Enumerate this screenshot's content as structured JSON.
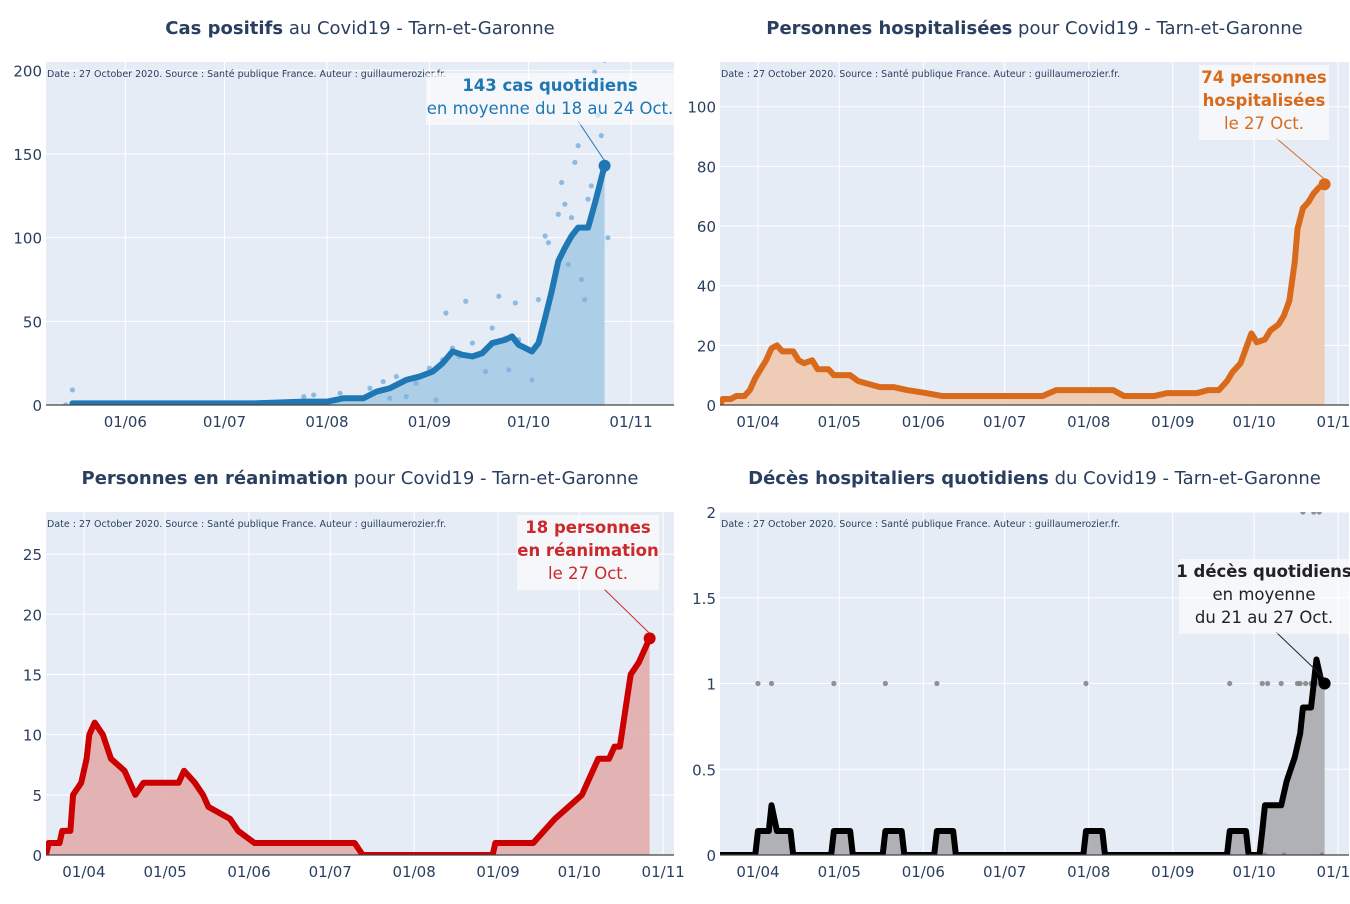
{
  "source_note": "Date : 27 October 2020. Source : Santé publique France. Auteur : guillaumerozier.fr.",
  "chart_data": [
    {
      "id": "cases",
      "type": "area",
      "title_bold": "Cas positifs",
      "title_rest": " au Covid19 - Tarn-et-Garonne",
      "color": "#1f77b4",
      "fill": "#a6cbe6",
      "dot_color": "#7fb2dc",
      "ylim": [
        0,
        205
      ],
      "y_ticks": [
        0,
        50,
        100,
        150,
        200
      ],
      "y_tick_labels": [
        "0",
        "50",
        "100",
        "150",
        "200"
      ],
      "x_range": [
        "2020-05-08",
        "2020-11-14"
      ],
      "x_ticks": [
        "2020-06-01",
        "2020-07-01",
        "2020-08-01",
        "2020-09-01",
        "2020-10-01",
        "2020-11-01"
      ],
      "x_tick_labels": [
        "01/06",
        "01/07",
        "01/08",
        "01/09",
        "01/10",
        "01/11"
      ],
      "line": [
        [
          "2020-05-16",
          1
        ],
        [
          "2020-06-01",
          1
        ],
        [
          "2020-06-20",
          1
        ],
        [
          "2020-07-10",
          1
        ],
        [
          "2020-07-25",
          2
        ],
        [
          "2020-08-01",
          2
        ],
        [
          "2020-08-06",
          4
        ],
        [
          "2020-08-12",
          4
        ],
        [
          "2020-08-16",
          8
        ],
        [
          "2020-08-20",
          10
        ],
        [
          "2020-08-25",
          15
        ],
        [
          "2020-08-29",
          17
        ],
        [
          "2020-09-02",
          20
        ],
        [
          "2020-09-05",
          25
        ],
        [
          "2020-09-08",
          32
        ],
        [
          "2020-09-11",
          30
        ],
        [
          "2020-09-14",
          29
        ],
        [
          "2020-09-17",
          31
        ],
        [
          "2020-09-20",
          37
        ],
        [
          "2020-09-24",
          39
        ],
        [
          "2020-09-26",
          41
        ],
        [
          "2020-09-28",
          36
        ],
        [
          "2020-09-30",
          34
        ],
        [
          "2020-10-02",
          32
        ],
        [
          "2020-10-04",
          37
        ],
        [
          "2020-10-06",
          52
        ],
        [
          "2020-10-08",
          68
        ],
        [
          "2020-10-10",
          86
        ],
        [
          "2020-10-12",
          94
        ],
        [
          "2020-10-14",
          101
        ],
        [
          "2020-10-16",
          106
        ],
        [
          "2020-10-19",
          106
        ],
        [
          "2020-10-21",
          120
        ],
        [
          "2020-10-24",
          143
        ]
      ],
      "dots": [
        [
          "2020-05-16",
          9
        ],
        [
          "2020-05-14",
          0
        ],
        [
          "2020-06-20",
          1
        ],
        [
          "2020-07-25",
          5
        ],
        [
          "2020-07-28",
          6
        ],
        [
          "2020-08-05",
          7
        ],
        [
          "2020-08-14",
          10
        ],
        [
          "2020-08-18",
          14
        ],
        [
          "2020-08-20",
          4
        ],
        [
          "2020-08-22",
          17
        ],
        [
          "2020-08-25",
          5
        ],
        [
          "2020-08-28",
          13
        ],
        [
          "2020-09-01",
          22
        ],
        [
          "2020-09-03",
          3
        ],
        [
          "2020-09-05",
          27
        ],
        [
          "2020-09-06",
          55
        ],
        [
          "2020-09-08",
          34
        ],
        [
          "2020-09-10",
          29
        ],
        [
          "2020-09-12",
          62
        ],
        [
          "2020-09-14",
          37
        ],
        [
          "2020-09-16",
          30
        ],
        [
          "2020-09-18",
          20
        ],
        [
          "2020-09-20",
          46
        ],
        [
          "2020-09-22",
          65
        ],
        [
          "2020-09-24",
          40
        ],
        [
          "2020-09-25",
          21
        ],
        [
          "2020-09-27",
          61
        ],
        [
          "2020-09-28",
          39
        ],
        [
          "2020-10-02",
          15
        ],
        [
          "2020-10-04",
          63
        ],
        [
          "2020-10-06",
          101
        ],
        [
          "2020-10-07",
          97
        ],
        [
          "2020-10-08",
          67
        ],
        [
          "2020-10-10",
          114
        ],
        [
          "2020-10-11",
          133
        ],
        [
          "2020-10-12",
          120
        ],
        [
          "2020-10-13",
          84
        ],
        [
          "2020-10-14",
          112
        ],
        [
          "2020-10-15",
          145
        ],
        [
          "2020-10-16",
          155
        ],
        [
          "2020-10-17",
          75
        ],
        [
          "2020-10-18",
          63
        ],
        [
          "2020-10-19",
          123
        ],
        [
          "2020-10-20",
          131
        ],
        [
          "2020-10-21",
          199
        ],
        [
          "2020-10-22",
          173
        ],
        [
          "2020-10-23",
          161
        ],
        [
          "2020-10-24",
          206
        ],
        [
          "2020-10-25",
          100
        ]
      ],
      "marker": [
        "2020-10-24",
        143
      ],
      "annotation": [
        "143 cas quotidiens",
        "en moyenne du 18 au 24 Oct."
      ]
    },
    {
      "id": "hosp",
      "type": "area",
      "title_bold": "Personnes hospitalisées",
      "title_rest": " pour Covid19 - Tarn-et-Garonne",
      "color": "#d96a1c",
      "fill": "#f0c9ae",
      "ylim": [
        0,
        115
      ],
      "y_ticks": [
        0,
        20,
        40,
        60,
        80,
        100
      ],
      "y_tick_labels": [
        "0",
        "20",
        "40",
        "60",
        "80",
        "100"
      ],
      "x_range": [
        "2020-03-18",
        "2020-11-05"
      ],
      "x_ticks": [
        "2020-04-01",
        "2020-05-01",
        "2020-06-01",
        "2020-07-01",
        "2020-08-01",
        "2020-09-01",
        "2020-10-01",
        "2020-11-01"
      ],
      "x_tick_labels": [
        "01/04",
        "01/05",
        "01/06",
        "01/07",
        "01/08",
        "01/09",
        "01/10",
        "01/11"
      ],
      "line": [
        [
          "2020-03-18",
          0
        ],
        [
          "2020-03-19",
          2
        ],
        [
          "2020-03-22",
          2
        ],
        [
          "2020-03-24",
          3
        ],
        [
          "2020-03-27",
          3
        ],
        [
          "2020-03-29",
          5
        ],
        [
          "2020-03-31",
          9
        ],
        [
          "2020-04-02",
          12
        ],
        [
          "2020-04-04",
          15
        ],
        [
          "2020-04-06",
          19
        ],
        [
          "2020-04-08",
          20
        ],
        [
          "2020-04-10",
          18
        ],
        [
          "2020-04-14",
          18
        ],
        [
          "2020-04-16",
          15
        ],
        [
          "2020-04-18",
          14
        ],
        [
          "2020-04-21",
          15
        ],
        [
          "2020-04-23",
          12
        ],
        [
          "2020-04-27",
          12
        ],
        [
          "2020-04-29",
          10
        ],
        [
          "2020-05-05",
          10
        ],
        [
          "2020-05-08",
          8
        ],
        [
          "2020-05-12",
          7
        ],
        [
          "2020-05-16",
          6
        ],
        [
          "2020-05-21",
          6
        ],
        [
          "2020-05-26",
          5
        ],
        [
          "2020-06-02",
          4
        ],
        [
          "2020-06-08",
          3
        ],
        [
          "2020-06-15",
          3
        ],
        [
          "2020-06-30",
          3
        ],
        [
          "2020-07-15",
          3
        ],
        [
          "2020-07-20",
          5
        ],
        [
          "2020-07-31",
          5
        ],
        [
          "2020-08-10",
          5
        ],
        [
          "2020-08-14",
          3
        ],
        [
          "2020-08-25",
          3
        ],
        [
          "2020-08-30",
          4
        ],
        [
          "2020-09-10",
          4
        ],
        [
          "2020-09-14",
          5
        ],
        [
          "2020-09-18",
          5
        ],
        [
          "2020-09-21",
          8
        ],
        [
          "2020-09-23",
          11
        ],
        [
          "2020-09-26",
          14
        ],
        [
          "2020-09-28",
          19
        ],
        [
          "2020-09-30",
          24
        ],
        [
          "2020-10-02",
          21
        ],
        [
          "2020-10-05",
          22
        ],
        [
          "2020-10-07",
          25
        ],
        [
          "2020-10-10",
          27
        ],
        [
          "2020-10-12",
          30
        ],
        [
          "2020-10-14",
          35
        ],
        [
          "2020-10-16",
          48
        ],
        [
          "2020-10-17",
          59
        ],
        [
          "2020-10-19",
          66
        ],
        [
          "2020-10-21",
          68
        ],
        [
          "2020-10-23",
          71
        ],
        [
          "2020-10-25",
          73
        ],
        [
          "2020-10-27",
          74
        ]
      ],
      "marker": [
        "2020-10-27",
        74
      ],
      "annotation": [
        "74 personnes",
        "hospitalisées",
        "le 27 Oct."
      ]
    },
    {
      "id": "rea",
      "type": "area",
      "title_bold": "Personnes en réanimation",
      "title_rest": " pour Covid19 - Tarn-et-Garonne",
      "color": "#cc0000",
      "fill": "#e2adad",
      "ylim": [
        0,
        28.5
      ],
      "y_ticks": [
        0,
        5,
        10,
        15,
        20,
        25
      ],
      "y_tick_labels": [
        "0",
        "5",
        "10",
        "15",
        "20",
        "25"
      ],
      "x_range": [
        "2020-03-18",
        "2020-11-05"
      ],
      "x_ticks": [
        "2020-04-01",
        "2020-05-01",
        "2020-06-01",
        "2020-07-01",
        "2020-08-01",
        "2020-09-01",
        "2020-10-01",
        "2020-11-01"
      ],
      "x_tick_labels": [
        "01/04",
        "01/05",
        "01/06",
        "01/07",
        "01/08",
        "01/09",
        "01/10",
        "01/11"
      ],
      "line": [
        [
          "2020-03-18",
          0
        ],
        [
          "2020-03-19",
          1
        ],
        [
          "2020-03-23",
          1
        ],
        [
          "2020-03-24",
          2
        ],
        [
          "2020-03-27",
          2
        ],
        [
          "2020-03-28",
          5
        ],
        [
          "2020-03-31",
          6
        ],
        [
          "2020-04-02",
          8
        ],
        [
          "2020-04-03",
          10
        ],
        [
          "2020-04-05",
          11
        ],
        [
          "2020-04-08",
          10
        ],
        [
          "2020-04-11",
          8
        ],
        [
          "2020-04-16",
          7
        ],
        [
          "2020-04-18",
          6
        ],
        [
          "2020-04-20",
          5
        ],
        [
          "2020-04-23",
          6
        ],
        [
          "2020-05-06",
          6
        ],
        [
          "2020-05-08",
          7
        ],
        [
          "2020-05-12",
          6
        ],
        [
          "2020-05-15",
          5
        ],
        [
          "2020-05-17",
          4
        ],
        [
          "2020-05-25",
          3
        ],
        [
          "2020-05-28",
          2
        ],
        [
          "2020-06-03",
          1
        ],
        [
          "2020-06-20",
          1
        ],
        [
          "2020-07-10",
          1
        ],
        [
          "2020-07-13",
          0
        ],
        [
          "2020-08-30",
          0
        ],
        [
          "2020-08-31",
          1
        ],
        [
          "2020-09-14",
          1
        ],
        [
          "2020-09-18",
          2
        ],
        [
          "2020-09-22",
          3
        ],
        [
          "2020-09-27",
          4
        ],
        [
          "2020-10-02",
          5
        ],
        [
          "2020-10-04",
          6
        ],
        [
          "2020-10-06",
          7
        ],
        [
          "2020-10-08",
          8
        ],
        [
          "2020-10-12",
          8
        ],
        [
          "2020-10-14",
          9
        ],
        [
          "2020-10-16",
          9
        ],
        [
          "2020-10-18",
          12
        ],
        [
          "2020-10-20",
          15
        ],
        [
          "2020-10-23",
          16
        ],
        [
          "2020-10-25",
          17
        ],
        [
          "2020-10-27",
          18
        ]
      ],
      "marker": [
        "2020-10-27",
        18
      ],
      "annotation": [
        "18 personnes",
        "en réanimation",
        "le 27 Oct."
      ]
    },
    {
      "id": "deces",
      "type": "area",
      "title_bold": "Décès hospitaliers quotidiens",
      "title_rest": " du Covid19 - Tarn-et-Garonne",
      "color": "#000000",
      "fill": "#a9abaf",
      "dot_color": "#808080",
      "ylim": [
        0,
        2
      ],
      "y_ticks": [
        0,
        0.5,
        1,
        1.5,
        2
      ],
      "y_tick_labels": [
        "0",
        "0.5",
        "1",
        "1.5",
        "2"
      ],
      "x_range": [
        "2020-03-18",
        "2020-11-05"
      ],
      "x_ticks": [
        "2020-04-01",
        "2020-05-01",
        "2020-06-01",
        "2020-07-01",
        "2020-08-01",
        "2020-09-01",
        "2020-10-01",
        "2020-11-01"
      ],
      "x_tick_labels": [
        "01/04",
        "01/05",
        "01/06",
        "01/07",
        "01/08",
        "01/09",
        "01/10",
        "01/11"
      ],
      "line": [
        [
          "2020-03-18",
          0
        ],
        [
          "2020-03-31",
          0
        ],
        [
          "2020-04-01",
          0.14
        ],
        [
          "2020-04-05",
          0.14
        ],
        [
          "2020-04-06",
          0.29
        ],
        [
          "2020-04-08",
          0.14
        ],
        [
          "2020-04-13",
          0.14
        ],
        [
          "2020-04-14",
          0
        ],
        [
          "2020-04-28",
          0
        ],
        [
          "2020-04-29",
          0.14
        ],
        [
          "2020-05-05",
          0.14
        ],
        [
          "2020-05-06",
          0
        ],
        [
          "2020-05-17",
          0
        ],
        [
          "2020-05-18",
          0.14
        ],
        [
          "2020-05-24",
          0.14
        ],
        [
          "2020-05-25",
          0
        ],
        [
          "2020-06-05",
          0
        ],
        [
          "2020-06-06",
          0.14
        ],
        [
          "2020-06-12",
          0.14
        ],
        [
          "2020-06-13",
          0
        ],
        [
          "2020-07-30",
          0
        ],
        [
          "2020-07-31",
          0.14
        ],
        [
          "2020-08-06",
          0.14
        ],
        [
          "2020-08-07",
          0
        ],
        [
          "2020-09-21",
          0
        ],
        [
          "2020-09-22",
          0.14
        ],
        [
          "2020-09-28",
          0.14
        ],
        [
          "2020-09-29",
          0
        ],
        [
          "2020-10-03",
          0
        ],
        [
          "2020-10-04",
          0.14
        ],
        [
          "2020-10-05",
          0.29
        ],
        [
          "2020-10-11",
          0.29
        ],
        [
          "2020-10-13",
          0.43
        ],
        [
          "2020-10-16",
          0.57
        ],
        [
          "2020-10-18",
          0.71
        ],
        [
          "2020-10-19",
          0.86
        ],
        [
          "2020-10-22",
          0.86
        ],
        [
          "2020-10-23",
          1.0
        ],
        [
          "2020-10-24",
          1.14
        ],
        [
          "2020-10-26",
          1.0
        ],
        [
          "2020-10-27",
          1.0
        ]
      ],
      "dots": [
        [
          "2020-04-01",
          1
        ],
        [
          "2020-04-06",
          1
        ],
        [
          "2020-04-29",
          1
        ],
        [
          "2020-05-18",
          1
        ],
        [
          "2020-06-06",
          1
        ],
        [
          "2020-07-31",
          1
        ],
        [
          "2020-09-22",
          1
        ],
        [
          "2020-10-04",
          1
        ],
        [
          "2020-10-06",
          1
        ],
        [
          "2020-10-11",
          1
        ],
        [
          "2020-10-17",
          1
        ],
        [
          "2020-10-18",
          1
        ],
        [
          "2020-10-20",
          1
        ],
        [
          "2020-10-22",
          1
        ],
        [
          "2020-10-24",
          1
        ],
        [
          "2020-10-19",
          2
        ],
        [
          "2020-10-23",
          2
        ],
        [
          "2020-10-25",
          2
        ],
        [
          "2020-10-05",
          0
        ],
        [
          "2020-10-12",
          0
        ],
        [
          "2020-10-26",
          0
        ]
      ],
      "marker": [
        "2020-10-27",
        1
      ],
      "annotation": [
        "1 décès quotidiens",
        "en moyenne",
        "du 21 au 27 Oct."
      ]
    }
  ]
}
